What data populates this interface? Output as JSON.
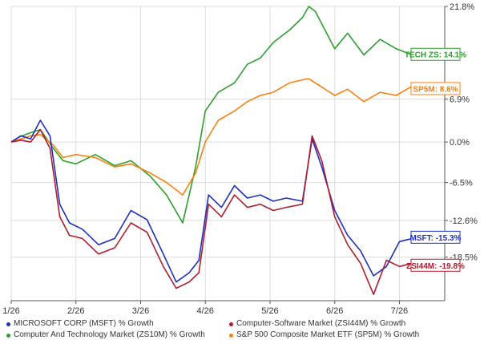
{
  "chart_data": {
    "type": "line",
    "title": "",
    "xlabel": "",
    "ylabel": "",
    "ylim": [
      -25.5,
      21.8
    ],
    "y_ticks": [
      "21.8%",
      "6.9%",
      "0.0%",
      "-6.5%",
      "-12.6%",
      "-18.5%"
    ],
    "y_tick_values": [
      21.8,
      6.9,
      0.0,
      -6.5,
      -12.6,
      -18.5
    ],
    "x_ticks": [
      "1/26",
      "2/26",
      "3/26",
      "4/26",
      "5/26",
      "6/26",
      "7/26"
    ],
    "x_tick_months": [
      0,
      1,
      2,
      3,
      4,
      5,
      6
    ],
    "x_range_months": [
      0,
      6.7
    ],
    "grid": true,
    "series": [
      {
        "name": "Computer And Technology Market (ZS10M) % Growth",
        "color": "#2ca02c",
        "end_label": "TECH ZS: 14.1%",
        "x": [
          0,
          0.12,
          0.3,
          0.45,
          0.65,
          0.8,
          1.0,
          1.3,
          1.6,
          1.85,
          2.15,
          2.4,
          2.65,
          2.85,
          3.0,
          3.2,
          3.45,
          3.65,
          3.85,
          4.05,
          4.3,
          4.5,
          4.6,
          4.7,
          4.85,
          5.0,
          5.2,
          5.45,
          5.7,
          5.95,
          6.2,
          6.45,
          6.6
        ],
        "values": [
          0.0,
          0.8,
          1.5,
          2.0,
          -1.0,
          -3.0,
          -3.5,
          -2.0,
          -3.8,
          -3.0,
          -5.5,
          -8.5,
          -13.0,
          -4.0,
          5.0,
          8.0,
          9.5,
          12.5,
          13.5,
          16.0,
          18.0,
          20.0,
          21.8,
          21.0,
          18.0,
          15.0,
          17.5,
          14.0,
          16.5,
          15.0,
          14.0,
          14.5,
          14.1
        ]
      },
      {
        "name": "S&P 500 Composite Market ETF (SP5M) % Growth",
        "color": "#ff7f0e",
        "end_label": "SP5M: 8.6%",
        "x": [
          0,
          0.15,
          0.3,
          0.45,
          0.65,
          0.8,
          1.0,
          1.3,
          1.6,
          1.85,
          2.15,
          2.4,
          2.65,
          2.85,
          3.0,
          3.2,
          3.45,
          3.65,
          3.85,
          4.05,
          4.3,
          4.5,
          4.6,
          4.7,
          4.85,
          5.0,
          5.2,
          5.45,
          5.7,
          5.95,
          6.2,
          6.45,
          6.6
        ],
        "values": [
          0.0,
          0.5,
          1.0,
          1.2,
          -0.5,
          -2.5,
          -2.0,
          -2.5,
          -4.0,
          -3.5,
          -5.0,
          -6.5,
          -8.5,
          -5.0,
          0.0,
          3.5,
          5.0,
          6.5,
          7.5,
          8.0,
          9.5,
          10.0,
          10.2,
          9.5,
          8.5,
          7.5,
          8.5,
          6.5,
          8.0,
          7.5,
          9.0,
          8.5,
          8.6
        ]
      },
      {
        "name": "MICROSOFT CORP (MSFT) % Growth",
        "color": "#1f2fbf",
        "end_label": "MSFT: -15.3%",
        "x": [
          0,
          0.15,
          0.3,
          0.45,
          0.6,
          0.75,
          0.9,
          1.1,
          1.35,
          1.6,
          1.85,
          2.1,
          2.35,
          2.55,
          2.75,
          2.9,
          3.05,
          3.25,
          3.45,
          3.65,
          3.85,
          4.05,
          4.25,
          4.5,
          4.65,
          4.8,
          5.0,
          5.2,
          5.4,
          5.6,
          5.8,
          6.0,
          6.2,
          6.4,
          6.6
        ],
        "values": [
          0.0,
          1.0,
          0.5,
          3.5,
          1.0,
          -10.0,
          -13.0,
          -14.0,
          -16.5,
          -15.5,
          -11.0,
          -12.5,
          -18.0,
          -22.5,
          -21.0,
          -19.0,
          -8.5,
          -10.5,
          -7.0,
          -9.0,
          -8.5,
          -9.5,
          -9.0,
          -9.5,
          0.5,
          -4.0,
          -11.0,
          -15.0,
          -17.5,
          -21.5,
          -20.0,
          -16.0,
          -15.5,
          -16.0,
          -15.3
        ]
      },
      {
        "name": "Computer-Software Market (ZSI44M) % Growth",
        "color": "#b01c2e",
        "end_label": "ZSI44M: -19.8%",
        "x": [
          0,
          0.15,
          0.3,
          0.45,
          0.6,
          0.75,
          0.9,
          1.1,
          1.35,
          1.6,
          1.85,
          2.1,
          2.35,
          2.55,
          2.75,
          2.9,
          3.05,
          3.25,
          3.45,
          3.65,
          3.85,
          4.05,
          4.25,
          4.5,
          4.65,
          4.8,
          5.0,
          5.2,
          5.4,
          5.6,
          5.8,
          6.0,
          6.2,
          6.4,
          6.6
        ],
        "values": [
          0.0,
          0.3,
          0.0,
          2.0,
          -1.0,
          -12.0,
          -15.0,
          -15.5,
          -18.0,
          -17.0,
          -13.0,
          -14.5,
          -20.0,
          -23.5,
          -22.5,
          -21.0,
          -10.0,
          -12.0,
          -8.5,
          -10.5,
          -10.0,
          -11.0,
          -10.5,
          -10.0,
          1.0,
          -3.0,
          -12.0,
          -16.5,
          -19.5,
          -24.5,
          -19.0,
          -20.0,
          -19.5,
          -20.0,
          -19.8
        ]
      }
    ]
  }
}
